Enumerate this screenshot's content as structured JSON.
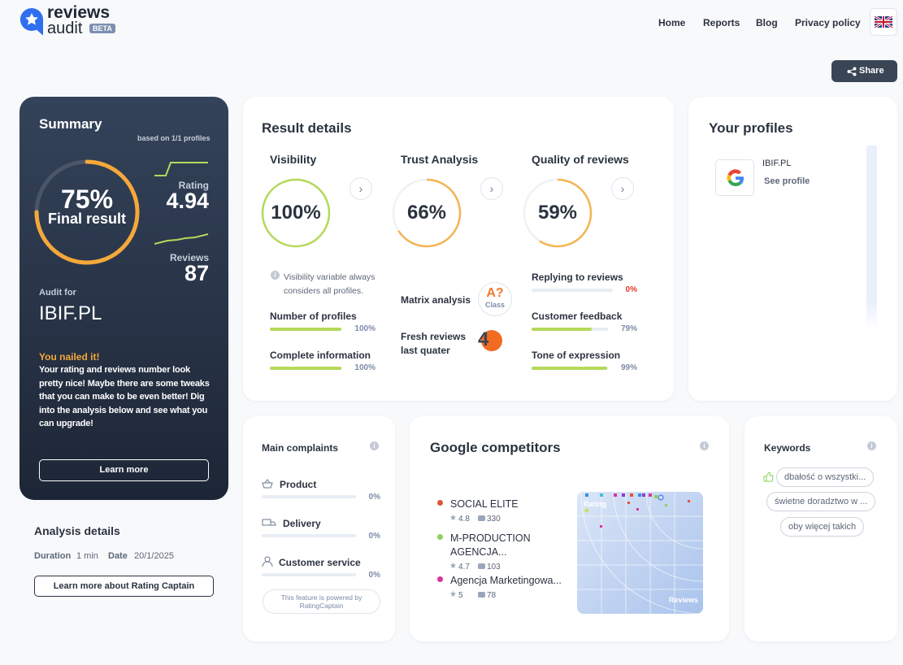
{
  "header": {
    "logo_top": "reviews",
    "logo_bottom": "audit",
    "badge": "BETA",
    "nav": [
      "Home",
      "Reports",
      "Blog",
      "Privacy policy"
    ]
  },
  "share": "Share",
  "summary": {
    "title": "Summary",
    "based_on": "based on 1/1 profiles",
    "score": {
      "value": 75,
      "label": "75%"
    },
    "score_caption": "Final result",
    "rating_label": "Rating",
    "rating": "4.94",
    "reviews_label": "Reviews",
    "reviews": "87",
    "audit_for": "Audit for",
    "domain": "IBIF.PL",
    "headline": "You nailed it!",
    "message": "Your rating and reviews number look pretty nice! Maybe there are some tweaks that you can make to be even better! Dig into the analysis below and see what you can upgrade!",
    "button": "Learn more"
  },
  "analysis": {
    "title": "Analysis details",
    "duration_label": "Duration",
    "duration": "1 min",
    "date_label": "Date",
    "date": "20/1/2025",
    "button": "Learn more about Rating Captain"
  },
  "result": {
    "title": "Result details",
    "visibility": {
      "title": "Visibility",
      "score": {
        "value": 100,
        "label": "100%"
      },
      "note": "Visibility variable always considers all profiles.",
      "items": [
        {
          "name": "Number of profiles",
          "value": 100,
          "label": "100%"
        },
        {
          "name": "Complete information",
          "value": 100,
          "label": "100%"
        }
      ]
    },
    "trust": {
      "title": "Trust Analysis",
      "score": {
        "value": 66,
        "label": "66%"
      },
      "matrix_label": "Matrix analysis",
      "matrix_grade": "A?",
      "matrix_class": "Class",
      "fresh_label": "Fresh reviews last quater",
      "fresh_value": "4"
    },
    "quality": {
      "title": "Quality of reviews",
      "score": {
        "value": 59,
        "label": "59%"
      },
      "items": [
        {
          "name": "Replying to reviews",
          "value": 0,
          "label": "0%"
        },
        {
          "name": "Customer feedback",
          "value": 79,
          "label": "79%"
        },
        {
          "name": "Tone of expression",
          "value": 99,
          "label": "99%"
        }
      ]
    }
  },
  "profiles": {
    "title": "Your profiles",
    "items": [
      {
        "name": "IBIF.PL",
        "link": "See profile"
      }
    ]
  },
  "complaints": {
    "title": "Main complaints",
    "items": [
      {
        "name": "Product",
        "value": 0,
        "label": "0%"
      },
      {
        "name": "Delivery",
        "value": 0,
        "label": "0%"
      },
      {
        "name": "Customer service",
        "value": 0,
        "label": "0%"
      }
    ],
    "powered": "This feature is powered by",
    "powered_brand": "RatingCaptain"
  },
  "competitors": {
    "title": "Google competitors",
    "chart_y": "Rating",
    "chart_x": "Reviews",
    "items": [
      {
        "name": "SOCIAL ELITE",
        "rating": "4.8",
        "reviews": "330",
        "color": "#e0533b"
      },
      {
        "name": "M-PRODUCTION AGENCJA...",
        "rating": "4.7",
        "reviews": "103",
        "color": "#8bd15a"
      },
      {
        "name": "Agencja Marketingowa...",
        "rating": "5",
        "reviews": "78",
        "color": "#d8359c"
      }
    ]
  },
  "keywords": {
    "title": "Keywords",
    "items": [
      "dbałość o wszystki...",
      "świetne doradztwo w ...",
      "oby więcej takich"
    ]
  }
}
